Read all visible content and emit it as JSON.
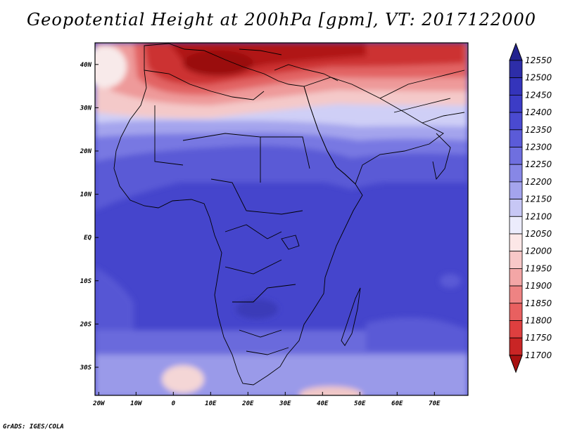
{
  "title": "Geopotential Height at 200hPa [gpm], VT: 2017122000",
  "credit": "GrADS: IGES/COLA",
  "map": {
    "lat_ticks": [
      "40N",
      "30N",
      "20N",
      "10N",
      "EQ",
      "10S",
      "20S",
      "30S"
    ],
    "lon_ticks": [
      "20W",
      "10W",
      "0",
      "10E",
      "20E",
      "30E",
      "40E",
      "50E",
      "60E",
      "70E"
    ],
    "lat_range": [
      -36.5,
      45
    ],
    "lon_range": [
      -21,
      79
    ],
    "grid": false
  },
  "colorbar": {
    "levels": [
      "12550",
      "12500",
      "12450",
      "12400",
      "12350",
      "12300",
      "12250",
      "12200",
      "12150",
      "12100",
      "12050",
      "12000",
      "11950",
      "11900",
      "11850",
      "11800",
      "11750",
      "11700"
    ],
    "colors": [
      "#23238f",
      "#2d2da8",
      "#3434bb",
      "#3c3cc6",
      "#4a4ad0",
      "#5b5bd8",
      "#6f6fdf",
      "#8787e6",
      "#a4a4ed",
      "#c7c7f5",
      "#ececfc",
      "#fce7e7",
      "#f8c8c8",
      "#f3a6a6",
      "#ee8383",
      "#e86060",
      "#de3f3f",
      "#c92525",
      "#a81111"
    ]
  }
}
